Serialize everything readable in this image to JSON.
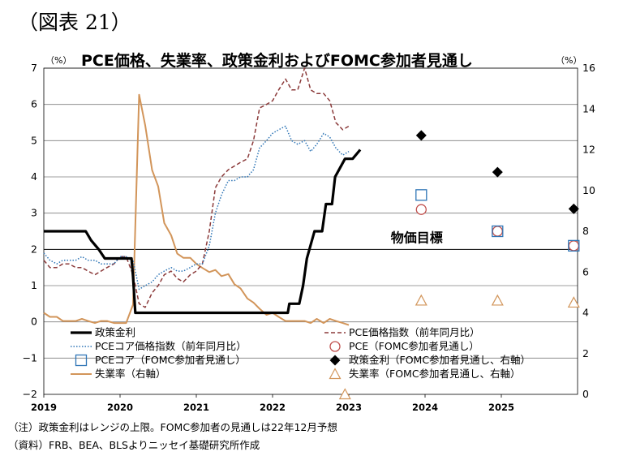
{
  "figure_label": "（図表 21）",
  "notes": {
    "note": "（注）政策金利はレンジの上限。FOMC参加者の見通しは22年12月予想",
    "source": "（資料）FRB、BEA、BLSよりニッセイ基礎研究所作成"
  },
  "colors": {
    "policy_rate": "#000000",
    "pce": "#8B3A3A",
    "pce_core": "#2E75B6",
    "unemployment": "#D2955A",
    "grid": "#7f7f7f"
  },
  "chart_data": {
    "type": "line",
    "title": "PCE価格、失業率、政策金利およびFOMC参加者見通し",
    "ylabel_left": "（%）",
    "ylabel_right": "（%）",
    "ylim_left": [
      -2,
      7
    ],
    "ylim_right": [
      0,
      16
    ],
    "yticks_left": [
      "7",
      "6",
      "5",
      "4",
      "3",
      "2",
      "1",
      "0",
      "−1",
      "−2"
    ],
    "yticks_right": [
      "16",
      "14",
      "12",
      "10",
      "8",
      "6",
      "4",
      "2",
      "0"
    ],
    "x_range": [
      2019.0,
      2026.0
    ],
    "xticks": [
      "2019",
      "2020",
      "2021",
      "2022",
      "2023",
      "2024",
      "2025"
    ],
    "xtick_values": [
      2019.0,
      2020.0,
      2021.0,
      2022.0,
      2023.0,
      2024.0,
      2025.0
    ],
    "grid": true,
    "annotation": {
      "text": "物価目標",
      "y": 2
    },
    "series": [
      {
        "name": "政策金利",
        "style": "solid-black-thick",
        "axis": "left",
        "points": [
          [
            2019.0,
            2.5
          ],
          [
            2019.55,
            2.5
          ],
          [
            2019.62,
            2.25
          ],
          [
            2019.72,
            2.0
          ],
          [
            2019.8,
            1.75
          ],
          [
            2020.15,
            1.75
          ],
          [
            2020.17,
            1.25
          ],
          [
            2020.2,
            0.25
          ],
          [
            2022.0,
            0.25
          ],
          [
            2022.2,
            0.25
          ],
          [
            2022.22,
            0.5
          ],
          [
            2022.35,
            0.5
          ],
          [
            2022.4,
            1.0
          ],
          [
            2022.45,
            1.75
          ],
          [
            2022.55,
            2.5
          ],
          [
            2022.65,
            2.5
          ],
          [
            2022.7,
            3.25
          ],
          [
            2022.78,
            3.25
          ],
          [
            2022.82,
            4.0
          ],
          [
            2022.95,
            4.5
          ],
          [
            2023.05,
            4.5
          ],
          [
            2023.15,
            4.75
          ]
        ]
      },
      {
        "name": "PCE価格指数（前年同月比）",
        "style": "dashed-darkred",
        "axis": "left",
        "points": [
          [
            2019.0,
            1.7
          ],
          [
            2019.08,
            1.5
          ],
          [
            2019.17,
            1.5
          ],
          [
            2019.25,
            1.6
          ],
          [
            2019.33,
            1.6
          ],
          [
            2019.42,
            1.5
          ],
          [
            2019.5,
            1.5
          ],
          [
            2019.58,
            1.4
          ],
          [
            2019.67,
            1.3
          ],
          [
            2019.75,
            1.4
          ],
          [
            2019.83,
            1.5
          ],
          [
            2019.92,
            1.6
          ],
          [
            2020.0,
            1.8
          ],
          [
            2020.08,
            1.8
          ],
          [
            2020.17,
            1.3
          ],
          [
            2020.25,
            0.5
          ],
          [
            2020.33,
            0.4
          ],
          [
            2020.42,
            0.8
          ],
          [
            2020.5,
            1.0
          ],
          [
            2020.58,
            1.3
          ],
          [
            2020.67,
            1.4
          ],
          [
            2020.75,
            1.2
          ],
          [
            2020.83,
            1.1
          ],
          [
            2020.92,
            1.3
          ],
          [
            2021.0,
            1.4
          ],
          [
            2021.08,
            1.6
          ],
          [
            2021.17,
            2.5
          ],
          [
            2021.25,
            3.7
          ],
          [
            2021.33,
            4.0
          ],
          [
            2021.42,
            4.2
          ],
          [
            2021.5,
            4.3
          ],
          [
            2021.58,
            4.4
          ],
          [
            2021.67,
            4.5
          ],
          [
            2021.75,
            5.0
          ],
          [
            2021.83,
            5.9
          ],
          [
            2021.92,
            6.0
          ],
          [
            2022.0,
            6.1
          ],
          [
            2022.08,
            6.4
          ],
          [
            2022.17,
            6.7
          ],
          [
            2022.25,
            6.4
          ],
          [
            2022.33,
            6.4
          ],
          [
            2022.42,
            7.0
          ],
          [
            2022.5,
            6.4
          ],
          [
            2022.58,
            6.3
          ],
          [
            2022.67,
            6.3
          ],
          [
            2022.75,
            6.1
          ],
          [
            2022.83,
            5.5
          ],
          [
            2022.92,
            5.3
          ],
          [
            2023.0,
            5.4
          ]
        ]
      },
      {
        "name": "PCEコア価格指数（前年同月比）",
        "style": "dotted-blue",
        "axis": "left",
        "points": [
          [
            2019.0,
            1.9
          ],
          [
            2019.08,
            1.7
          ],
          [
            2019.17,
            1.6
          ],
          [
            2019.25,
            1.7
          ],
          [
            2019.33,
            1.7
          ],
          [
            2019.42,
            1.7
          ],
          [
            2019.5,
            1.8
          ],
          [
            2019.58,
            1.7
          ],
          [
            2019.67,
            1.7
          ],
          [
            2019.75,
            1.6
          ],
          [
            2019.83,
            1.6
          ],
          [
            2019.92,
            1.6
          ],
          [
            2020.0,
            1.8
          ],
          [
            2020.08,
            1.8
          ],
          [
            2020.17,
            1.7
          ],
          [
            2020.25,
            0.9
          ],
          [
            2020.33,
            1.0
          ],
          [
            2020.42,
            1.1
          ],
          [
            2020.5,
            1.3
          ],
          [
            2020.58,
            1.4
          ],
          [
            2020.67,
            1.5
          ],
          [
            2020.75,
            1.4
          ],
          [
            2020.83,
            1.4
          ],
          [
            2020.92,
            1.5
          ],
          [
            2021.0,
            1.6
          ],
          [
            2021.08,
            1.6
          ],
          [
            2021.17,
            2.1
          ],
          [
            2021.25,
            3.0
          ],
          [
            2021.33,
            3.5
          ],
          [
            2021.42,
            3.9
          ],
          [
            2021.5,
            3.9
          ],
          [
            2021.58,
            4.0
          ],
          [
            2021.67,
            4.0
          ],
          [
            2021.75,
            4.2
          ],
          [
            2021.83,
            4.8
          ],
          [
            2021.92,
            5.0
          ],
          [
            2022.0,
            5.2
          ],
          [
            2022.08,
            5.3
          ],
          [
            2022.17,
            5.4
          ],
          [
            2022.25,
            5.0
          ],
          [
            2022.33,
            4.9
          ],
          [
            2022.42,
            5.0
          ],
          [
            2022.5,
            4.7
          ],
          [
            2022.58,
            4.9
          ],
          [
            2022.67,
            5.2
          ],
          [
            2022.75,
            5.1
          ],
          [
            2022.83,
            4.8
          ],
          [
            2022.92,
            4.6
          ],
          [
            2023.0,
            4.7
          ]
        ]
      },
      {
        "name": "失業率（右軸）",
        "style": "solid-tan",
        "axis": "right",
        "points": [
          [
            2019.0,
            4.0
          ],
          [
            2019.08,
            3.8
          ],
          [
            2019.17,
            3.8
          ],
          [
            2019.25,
            3.6
          ],
          [
            2019.33,
            3.6
          ],
          [
            2019.42,
            3.6
          ],
          [
            2019.5,
            3.7
          ],
          [
            2019.58,
            3.6
          ],
          [
            2019.67,
            3.5
          ],
          [
            2019.75,
            3.6
          ],
          [
            2019.83,
            3.6
          ],
          [
            2019.92,
            3.5
          ],
          [
            2020.0,
            3.5
          ],
          [
            2020.08,
            3.5
          ],
          [
            2020.17,
            4.4
          ],
          [
            2020.25,
            14.7
          ],
          [
            2020.33,
            13.2
          ],
          [
            2020.42,
            11.0
          ],
          [
            2020.5,
            10.2
          ],
          [
            2020.58,
            8.4
          ],
          [
            2020.67,
            7.8
          ],
          [
            2020.75,
            6.9
          ],
          [
            2020.83,
            6.7
          ],
          [
            2020.92,
            6.7
          ],
          [
            2021.0,
            6.4
          ],
          [
            2021.08,
            6.2
          ],
          [
            2021.17,
            6.0
          ],
          [
            2021.25,
            6.1
          ],
          [
            2021.33,
            5.8
          ],
          [
            2021.42,
            5.9
          ],
          [
            2021.5,
            5.4
          ],
          [
            2021.58,
            5.2
          ],
          [
            2021.67,
            4.7
          ],
          [
            2021.75,
            4.5
          ],
          [
            2021.83,
            4.2
          ],
          [
            2021.92,
            3.9
          ],
          [
            2022.0,
            4.0
          ],
          [
            2022.08,
            3.8
          ],
          [
            2022.17,
            3.6
          ],
          [
            2022.25,
            3.6
          ],
          [
            2022.33,
            3.6
          ],
          [
            2022.42,
            3.6
          ],
          [
            2022.5,
            3.5
          ],
          [
            2022.58,
            3.7
          ],
          [
            2022.67,
            3.5
          ],
          [
            2022.75,
            3.7
          ],
          [
            2022.83,
            3.6
          ],
          [
            2022.92,
            3.5
          ],
          [
            2023.0,
            3.4
          ]
        ]
      }
    ],
    "projections": [
      {
        "name": "PCE（FOMC参加者見通し）",
        "marker": "open-circle-red",
        "axis": "left",
        "points": [
          [
            2023.95,
            3.1
          ],
          [
            2024.95,
            2.5
          ],
          [
            2025.95,
            2.1
          ]
        ]
      },
      {
        "name": "PCEコア（FOMC参加者見通し）",
        "marker": "open-square-blue",
        "axis": "left",
        "points": [
          [
            2023.95,
            3.5
          ],
          [
            2024.95,
            2.5
          ],
          [
            2025.95,
            2.1
          ]
        ]
      },
      {
        "name": "政策金利（FOMC参加者見通し、右軸）",
        "marker": "filled-diamond-black",
        "axis": "right",
        "points": [
          [
            2023.95,
            12.7
          ],
          [
            2024.95,
            10.9
          ],
          [
            2025.95,
            9.1
          ]
        ]
      },
      {
        "name": "失業率（FOMC参加者見通し、右軸）",
        "marker": "open-triangle-tan",
        "axis": "right",
        "points": [
          [
            2022.95,
            0.0
          ],
          [
            2023.95,
            4.6
          ],
          [
            2024.95,
            4.6
          ],
          [
            2025.95,
            4.5
          ]
        ]
      }
    ],
    "legend": [
      {
        "label": "政策金利",
        "key": "solid-black-thick"
      },
      {
        "label": "PCE価格指数（前年同月比）",
        "key": "dashed-darkred"
      },
      {
        "label": "PCEコア価格指数（前年同月比）",
        "key": "dotted-blue"
      },
      {
        "label": "PCE（FOMC参加者見通し）",
        "key": "open-circle-red"
      },
      {
        "label": "PCEコア（FOMC参加者見通し）",
        "key": "open-square-blue"
      },
      {
        "label": "政策金利（FOMC参加者見通し、右軸）",
        "key": "filled-diamond-black"
      },
      {
        "label": "失業率（右軸）",
        "key": "solid-tan"
      },
      {
        "label": "失業率（FOMC参加者見通し、右軸）",
        "key": "open-triangle-tan"
      }
    ]
  }
}
